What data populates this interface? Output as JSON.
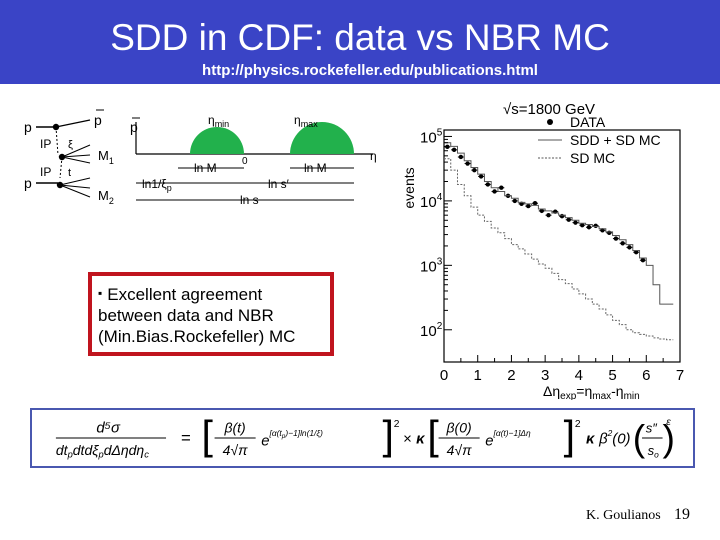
{
  "slide": {
    "title": "SDD in CDF: data vs NBR MC",
    "url": "http://physics.rockefeller.edu/publications.html",
    "colors": {
      "header": "#3a44c6",
      "callout_border": "#c0141e",
      "formula_border": "#4a58b0",
      "gap_green": "#22b14c"
    }
  },
  "diagram": {
    "labels": {
      "p_left_top": "p",
      "p_left_bottom": "p",
      "pbar_out": "p",
      "pomeron_top": "IP",
      "pomeron_bottom": "IP",
      "t_label": "t",
      "xi_label": "ξ",
      "m1": "M",
      "m1_sub": "1",
      "m2": "M",
      "m2_sub": "2",
      "pbar_axis": "p",
      "eta_min": "η",
      "eta_min_sub": "min",
      "eta_max": "η",
      "eta_max_sub": "max",
      "eta_axis": "η",
      "zero": "0",
      "ln_m1": "ln M",
      "ln_m2": "ln M",
      "ln_xi": "ln1/ξ",
      "ln_xi_sub": "p",
      "ln_s_prime": "ln s′",
      "ln_s": "ln s"
    }
  },
  "callout": {
    "bullet": "▪",
    "line1": "Excellent agreement",
    "line2": "between data and NBR",
    "line3": "(Min.Bias.Rockefeller) MC"
  },
  "chart_data": {
    "type": "line",
    "title": "√s=1800 GeV",
    "ylabel": "events",
    "xlabel": "Δη",
    "xlabel_sub": "exp",
    "xlabel_rest": "=η",
    "xlabel_max": "max",
    "xlabel_dash": "-η",
    "xlabel_min": "min",
    "x_ticks": [
      "0",
      "1",
      "2",
      "3",
      "4",
      "5",
      "6",
      "7"
    ],
    "y_ticks": [
      {
        "base": "10",
        "exp": "2"
      },
      {
        "base": "10",
        "exp": "3"
      },
      {
        "base": "10",
        "exp": "4"
      },
      {
        "base": "10",
        "exp": "5"
      }
    ],
    "xlim": [
      0,
      7
    ],
    "ylim_log10": [
      1.5,
      5.1
    ],
    "log_y": true,
    "legend_position": "top-right",
    "legend": [
      "DATA",
      "SDD + SD MC",
      "SD MC"
    ],
    "series": [
      {
        "name": "DATA",
        "style": "points",
        "x": [
          0.1,
          0.3,
          0.5,
          0.7,
          0.9,
          1.1,
          1.3,
          1.5,
          1.7,
          1.9,
          2.1,
          2.3,
          2.5,
          2.7,
          2.9,
          3.1,
          3.3,
          3.5,
          3.7,
          3.9,
          4.1,
          4.3,
          4.5,
          4.7,
          4.9,
          5.1,
          5.3,
          5.5,
          5.7,
          5.9
        ],
        "y": [
          69000,
          62000,
          48000,
          38000,
          30000,
          24000,
          18000,
          14000,
          16000,
          12000,
          10000,
          9000,
          8300,
          9200,
          7000,
          6000,
          6800,
          5800,
          5100,
          4600,
          4200,
          3900,
          4100,
          3500,
          3200,
          2600,
          2200,
          1900,
          1600,
          1200
        ]
      },
      {
        "name": "SDD + SD MC",
        "style": "solid-step",
        "x": [
          0,
          0.2,
          0.4,
          0.6,
          0.8,
          1.0,
          1.2,
          1.4,
          1.6,
          1.8,
          2.0,
          2.2,
          2.4,
          2.6,
          2.8,
          3.0,
          3.2,
          3.4,
          3.6,
          3.8,
          4.0,
          4.2,
          4.4,
          4.6,
          4.8,
          5.0,
          5.2,
          5.4,
          5.6,
          5.8,
          6.0,
          6.2,
          6.4,
          6.6
        ],
        "y": [
          80000,
          70000,
          55000,
          42000,
          33000,
          26000,
          20000,
          16000,
          14000,
          12000,
          11000,
          9500,
          9000,
          8500,
          7500,
          7000,
          6500,
          6000,
          5500,
          5000,
          4500,
          4300,
          4000,
          3700,
          3300,
          2900,
          2500,
          2100,
          1700,
          1300,
          1000,
          500,
          250,
          250
        ]
      },
      {
        "name": "SD MC",
        "style": "dotted-step",
        "x": [
          0,
          0.2,
          0.4,
          0.6,
          0.8,
          1.0,
          1.2,
          1.4,
          1.6,
          1.8,
          2.0,
          2.2,
          2.4,
          2.6,
          2.8,
          3.0,
          3.2,
          3.4,
          3.6,
          3.8,
          4.0,
          4.2,
          4.4,
          4.6,
          4.8,
          5.0,
          5.2,
          5.4,
          5.6,
          5.8,
          6.0,
          6.2,
          6.4,
          6.6
        ],
        "y": [
          45000,
          30000,
          18000,
          12000,
          8000,
          6000,
          4800,
          3800,
          3200,
          2600,
          2100,
          1800,
          1500,
          1250,
          1050,
          900,
          750,
          600,
          520,
          430,
          360,
          300,
          250,
          210,
          170,
          140,
          120,
          100,
          90,
          85,
          80,
          75,
          72,
          70
        ]
      }
    ]
  },
  "formula": {
    "lhs_num": "d⁵σ",
    "lhs_den": "dt",
    "lhs_den_p": "p",
    "lhs_den_mid": "dtdξ",
    "lhs_den_rest": "dΔηdη",
    "lhs_den_c": "c",
    "eq": "=",
    "f1_num": "β(t)",
    "f1_den": "4√π",
    "exp1": "e",
    "exp1_sup": "[α(t",
    "exp1_sup_sub": "p",
    "exp1_sup_rest": ")−1]ln(1/ξ)",
    "sq": "2",
    "times": "×",
    "kappa": "κ",
    "f2_num": "β(0)",
    "f2_den": "4√π",
    "exp2": "e",
    "exp2_sup": "[α(t)−1]Δη",
    "kappa2": "κ",
    "beta2": "β",
    "beta2_sup": "2",
    "beta2_arg": "(0)",
    "ratio_num": "s″",
    "ratio_den": "s",
    "ratio_den_sub": "o",
    "eps": "ε"
  },
  "footer": {
    "author": "K. Goulianos",
    "page": "19"
  }
}
